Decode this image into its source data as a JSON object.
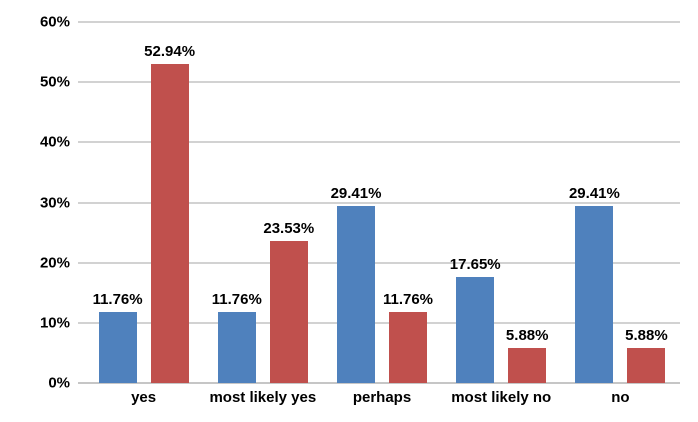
{
  "chart_data": {
    "type": "bar",
    "title": "",
    "categories": [
      "yes",
      "most likely yes",
      "perhaps",
      "most likely no",
      "no"
    ],
    "series": [
      {
        "name": "series-blue",
        "color": "#4F81BD",
        "values": [
          11.76,
          11.76,
          29.41,
          17.65,
          29.41
        ],
        "labels": [
          "11.76%",
          "11.76%",
          "29.41%",
          "17.65%",
          "29.41%"
        ]
      },
      {
        "name": "series-red",
        "color": "#C0504D",
        "values": [
          52.94,
          23.53,
          11.76,
          5.88,
          5.88
        ],
        "labels": [
          "52.94%",
          "23.53%",
          "11.76%",
          "5.88%",
          "5.88%"
        ]
      }
    ],
    "ylim": [
      0,
      60
    ],
    "yticks": [
      {
        "value": 0,
        "label": "0%"
      },
      {
        "value": 10,
        "label": "10%"
      },
      {
        "value": 20,
        "label": "20%"
      },
      {
        "value": 30,
        "label": "30%"
      },
      {
        "value": 40,
        "label": "40%"
      },
      {
        "value": 50,
        "label": "50%"
      },
      {
        "value": 60,
        "label": "60%"
      }
    ],
    "grid": "horizontal",
    "legend": "none",
    "colors": {
      "background": "#FFFFFF",
      "gridline": "#D2D2D2",
      "text": "#000000"
    }
  }
}
